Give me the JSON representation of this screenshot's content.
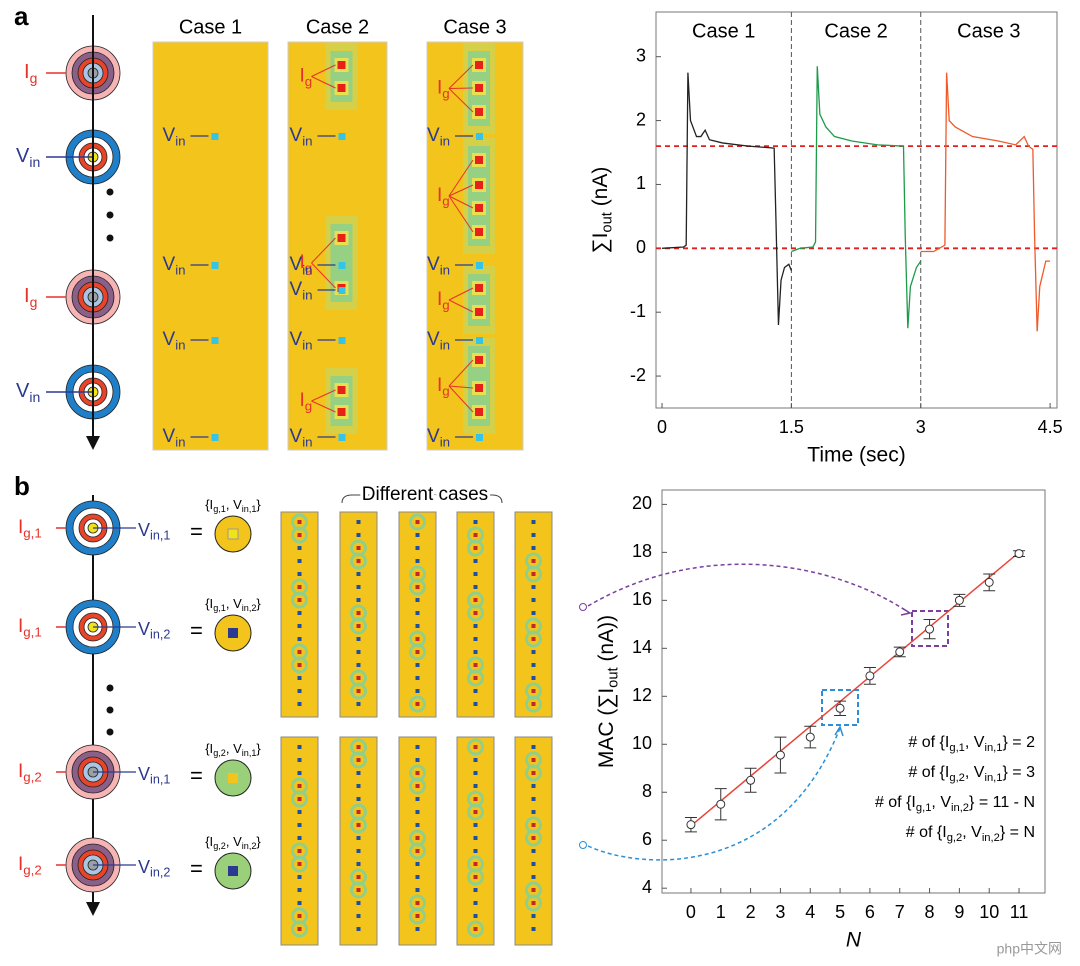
{
  "panel_labels": [
    "a",
    "b"
  ],
  "panel_a": {
    "ig": [
      "I",
      "g"
    ],
    "vin": [
      "V",
      "in"
    ]
  },
  "panel_b": {
    "ig1": [
      "I",
      "g,1"
    ],
    "ig2": [
      "I",
      "g,2"
    ],
    "vin1": [
      "V",
      "in,1"
    ],
    "vin2": [
      "V",
      "in,2"
    ],
    "pairs": [
      [
        "{I",
        "g,1",
        ", V",
        "in,1",
        "}"
      ],
      [
        "{I",
        "g,1",
        ", V",
        "in,2",
        "}"
      ],
      [
        "{I",
        "g,2",
        ", V",
        "in,1",
        "}"
      ],
      [
        "{I",
        "g,2",
        ", V",
        "in,2",
        "}"
      ]
    ],
    "equals": "=",
    "cases_title": "Different cases"
  },
  "watermark": "php中文网",
  "chart_data": [
    {
      "type": "line",
      "xlabel": "Time (sec)",
      "ylabel": [
        "∑I",
        "out",
        " (nA)"
      ],
      "annotations": [
        "Case 1",
        "Case 2",
        "Case 3"
      ],
      "xlim": [
        -0.07,
        4.58
      ],
      "ylim": [
        -2.5,
        3.7
      ],
      "xticks": [
        0,
        1.5,
        3,
        4.5
      ],
      "yticks": [
        -2,
        -1,
        0,
        1,
        2,
        3
      ],
      "hlines": [
        0,
        1.6
      ],
      "hline_color": "#e02020",
      "vlines": [
        1.5,
        3
      ],
      "series": [
        {
          "color": "#222222",
          "x": [
            0,
            0.25,
            0.28,
            0.3,
            0.33,
            0.4,
            0.45,
            0.5,
            0.55,
            0.7,
            1.0,
            1.3,
            1.32,
            1.35,
            1.38,
            1.42,
            1.47,
            1.5
          ],
          "values": [
            0,
            0.02,
            0.05,
            2.75,
            2.0,
            1.75,
            1.75,
            1.85,
            1.7,
            1.65,
            1.6,
            1.57,
            0.5,
            -1.2,
            -0.5,
            -0.3,
            -0.25,
            -0.35
          ]
        },
        {
          "color": "#1e9a4a",
          "x": [
            1.5,
            1.6,
            1.75,
            1.78,
            1.8,
            1.83,
            1.9,
            2.0,
            2.2,
            2.5,
            2.8,
            2.82,
            2.85,
            2.88,
            2.95,
            3.0
          ],
          "values": [
            -0.05,
            0,
            0.02,
            0.1,
            2.85,
            2.1,
            1.9,
            1.75,
            1.68,
            1.62,
            1.6,
            0.2,
            -1.25,
            -0.6,
            -0.3,
            -0.2
          ]
        },
        {
          "color": "#ee5a2a",
          "x": [
            3.0,
            3.15,
            3.28,
            3.3,
            3.33,
            3.4,
            3.6,
            3.9,
            4.1,
            4.2,
            4.25,
            4.3,
            4.32,
            4.35,
            4.38,
            4.45,
            4.5
          ],
          "values": [
            -0.05,
            -0.05,
            0.05,
            2.75,
            2.0,
            1.9,
            1.75,
            1.68,
            1.62,
            1.75,
            1.6,
            1.55,
            0.2,
            -1.3,
            -0.6,
            -0.2,
            -0.2
          ]
        }
      ]
    },
    {
      "type": "scatter",
      "xlabel": "N",
      "ylabel": [
        "MAC (∑I",
        "out",
        " (nA))"
      ],
      "x": [
        0,
        1,
        2,
        3,
        4,
        5,
        6,
        7,
        8,
        9,
        10,
        11
      ],
      "values": [
        6.65,
        7.5,
        8.5,
        9.55,
        10.3,
        11.5,
        12.85,
        13.85,
        14.8,
        16.0,
        16.75,
        17.95
      ],
      "errors": [
        0.3,
        0.65,
        0.5,
        0.75,
        0.45,
        0.3,
        0.35,
        0.2,
        0.4,
        0.25,
        0.35,
        0.12
      ],
      "fit": {
        "x": [
          0,
          11
        ],
        "y": [
          6.6,
          18
        ],
        "color": "#e8443a"
      },
      "xlim": [
        -0.97,
        11.87
      ],
      "ylim": [
        3.8,
        20.6
      ],
      "xticks": [
        0,
        1,
        2,
        3,
        4,
        5,
        6,
        7,
        8,
        9,
        10,
        11
      ],
      "yticks": [
        4,
        6,
        8,
        10,
        12,
        14,
        16,
        18,
        20
      ],
      "annotations": [
        [
          "# of {I",
          "g,1",
          ", V",
          "in,1",
          "} = 2"
        ],
        [
          "# of {I",
          "g,2",
          ", V",
          "in,1",
          "} = 3"
        ],
        [
          "# of {I",
          "g,1",
          ", V",
          "in,2",
          "} = 11 - N"
        ],
        [
          "# of {I",
          "g,2",
          ", V",
          "in,2",
          "} = N"
        ]
      ]
    }
  ]
}
